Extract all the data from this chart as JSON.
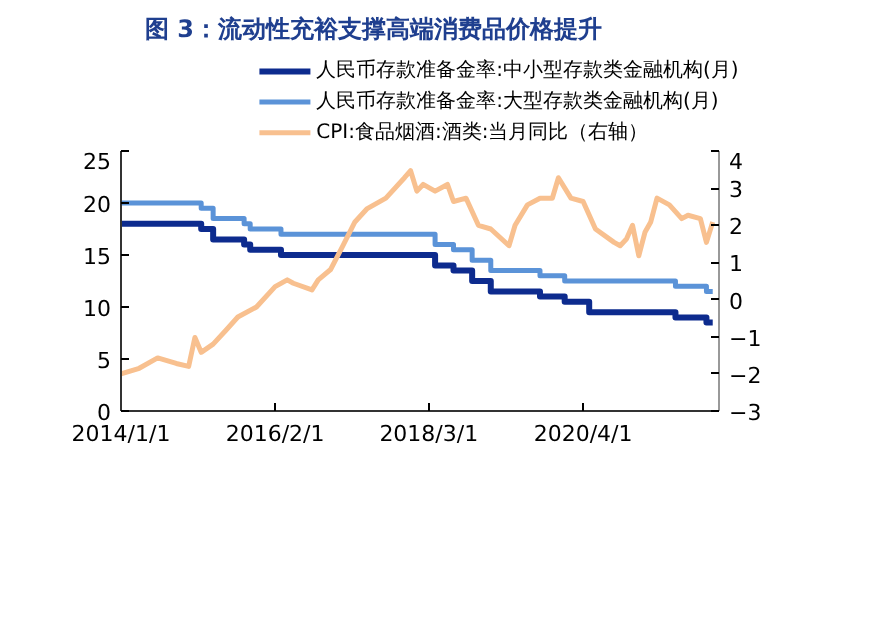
{
  "chart_data": {
    "type": "line",
    "title": "图 3：流动性充裕支撑高端消费品价格提升",
    "xlim": [
      "2014-01-01",
      "2022-02-01"
    ],
    "xticks": [
      {
        "value": "2014-01-01",
        "label": "2014/1/1"
      },
      {
        "value": "2016-02-01",
        "label": "2016/2/1"
      },
      {
        "value": "2018-03-01",
        "label": "2018/3/1"
      },
      {
        "value": "2020-04-01",
        "label": "2020/4/1"
      }
    ],
    "ylim": [
      0,
      25
    ],
    "yticks": [
      0,
      5,
      10,
      15,
      20,
      25
    ],
    "y2lim": [
      -3,
      4
    ],
    "y2ticks": [
      -3,
      -2,
      -1,
      0,
      1,
      2,
      3,
      4
    ],
    "grid": false,
    "legend": "top",
    "series": [
      {
        "name": "人民币存款准备金率:中小型存款类金融机构(月)",
        "type": "step",
        "color": "#0d2b8e",
        "x": [
          "2014-01",
          "2015-02",
          "2015-04",
          "2015-09",
          "2015-10",
          "2016-03",
          "2018-04",
          "2018-07",
          "2018-10",
          "2019-01",
          "2019-09",
          "2020-01",
          "2020-05",
          "2021-07",
          "2021-12",
          "2022-01"
        ],
        "values": [
          18,
          17.5,
          16.5,
          16,
          15.5,
          15,
          14,
          13.5,
          12.5,
          11.5,
          11,
          10.5,
          9.5,
          9,
          8.5,
          8.5
        ]
      },
      {
        "name": "人民币存款准备金率:大型存款类金融机构(月)",
        "type": "step",
        "color": "#5b93d8",
        "x": [
          "2014-01",
          "2015-02",
          "2015-04",
          "2015-09",
          "2015-10",
          "2016-03",
          "2018-04",
          "2018-07",
          "2018-10",
          "2019-01",
          "2019-09",
          "2020-01",
          "2021-07",
          "2021-12",
          "2022-01"
        ],
        "values": [
          20,
          19.5,
          18.5,
          18,
          17.5,
          17,
          16,
          15.5,
          14.5,
          13.5,
          13,
          12.5,
          12,
          11.5,
          11.5
        ]
      },
      {
        "name": "CPI:食品烟酒:酒类:当月同比（右轴）",
        "type": "line",
        "axis": "y2",
        "color": "#f8c08f",
        "x": [
          "2014-01",
          "2014-04",
          "2014-07",
          "2014-10",
          "2014-12",
          "2015-01",
          "2015-02",
          "2015-04",
          "2015-06",
          "2015-08",
          "2015-11",
          "2016-02",
          "2016-04",
          "2016-05",
          "2016-08",
          "2016-09",
          "2016-11",
          "2017-01",
          "2017-03",
          "2017-05",
          "2017-08",
          "2017-11",
          "2017-12",
          "2018-01",
          "2018-02",
          "2018-04",
          "2018-06",
          "2018-07",
          "2018-09",
          "2018-11",
          "2019-01",
          "2019-04",
          "2019-05",
          "2019-07",
          "2019-09",
          "2019-11",
          "2019-12",
          "2020-02",
          "2020-04",
          "2020-06",
          "2020-09",
          "2020-10",
          "2020-11",
          "2020-12",
          "2021-01",
          "2021-02",
          "2021-03",
          "2021-04",
          "2021-06",
          "2021-08",
          "2021-09",
          "2021-11",
          "2021-12",
          "2022-01"
        ],
        "values": [
          -2.0,
          -1.85,
          -1.57,
          -1.72,
          -1.8,
          -1.02,
          -1.42,
          -1.2,
          -0.84,
          -0.47,
          -0.2,
          0.35,
          0.53,
          0.44,
          0.26,
          0.53,
          0.81,
          1.45,
          2.09,
          2.45,
          2.73,
          3.28,
          3.47,
          2.92,
          3.1,
          2.92,
          3.1,
          2.64,
          2.73,
          2.0,
          1.9,
          1.45,
          2.0,
          2.55,
          2.73,
          2.73,
          3.28,
          2.73,
          2.64,
          1.9,
          1.54,
          1.45,
          1.63,
          2.0,
          1.18,
          1.82,
          2.09,
          2.73,
          2.55,
          2.18,
          2.27,
          2.18,
          1.54,
          2.09
        ]
      }
    ]
  }
}
